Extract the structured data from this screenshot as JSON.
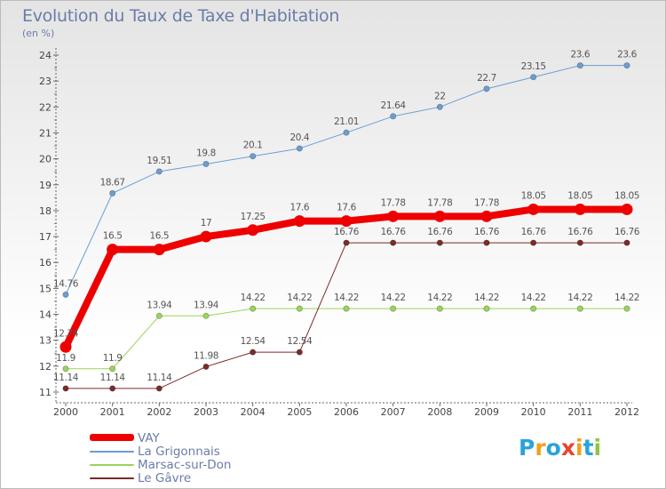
{
  "header": {
    "title": "Evolution du Taux de Taxe d'Habitation",
    "unit": "(en %)"
  },
  "logo": {
    "text": "Proxiti",
    "letters": [
      "P",
      "r",
      "o",
      "x",
      "i",
      "t",
      "i"
    ],
    "colors": [
      "#2aa3d9",
      "#f2a01a",
      "#2aa3d9",
      "#e8452c",
      "#f2a01a",
      "#2aa3d9",
      "#8cc63f"
    ]
  },
  "chart_data": {
    "type": "line",
    "title": "Evolution du Taux de Taxe d'Habitation",
    "ylabel": "(en %)",
    "xlabel": "",
    "ylim": [
      11,
      24
    ],
    "yticks": [
      11,
      12,
      13,
      14,
      15,
      16,
      17,
      18,
      19,
      20,
      21,
      22,
      23,
      24
    ],
    "x": [
      "2000",
      "2001",
      "2002",
      "2003",
      "2004",
      "2005",
      "2006",
      "2007",
      "2008",
      "2009",
      "2010",
      "2011",
      "2012"
    ],
    "grid": false,
    "legend_position": "bottom-left",
    "series": [
      {
        "name": "VAY",
        "color": "#ee0000",
        "values": [
          12.74,
          16.5,
          16.5,
          17,
          17.25,
          17.6,
          17.6,
          17.78,
          17.78,
          17.78,
          18.05,
          18.05,
          18.05
        ],
        "labels": [
          "12.74",
          "16.5",
          "16.5",
          "17",
          "17.25",
          "17.6",
          "17.6",
          "17.78",
          "17.78",
          "17.78",
          "18.05",
          "18.05",
          "18.05"
        ]
      },
      {
        "name": "La Grigonnais",
        "color": "#6b9ed0",
        "values": [
          14.76,
          18.67,
          19.51,
          19.8,
          20.1,
          20.4,
          21.01,
          21.64,
          22,
          22.7,
          23.15,
          23.6,
          23.6
        ],
        "labels": [
          "14.76",
          "18.67",
          "19.51",
          "19.8",
          "20.1",
          "20.4",
          "21.01",
          "21.64",
          "22",
          "22.7",
          "23.15",
          "23.6",
          "23.6"
        ]
      },
      {
        "name": "Marsac-sur-Don",
        "color": "#9ad45a",
        "values": [
          11.9,
          11.9,
          13.94,
          13.94,
          14.22,
          14.22,
          14.22,
          14.22,
          14.22,
          14.22,
          14.22,
          14.22,
          14.22
        ],
        "labels": [
          "11.9",
          "11.9",
          "13.94",
          "13.94",
          "14.22",
          "14.22",
          "14.22",
          "14.22",
          "14.22",
          "14.22",
          "14.22",
          "14.22",
          "14.22"
        ]
      },
      {
        "name": "Le Gâvre",
        "color": "#7b2b2b",
        "values": [
          11.14,
          11.14,
          11.14,
          11.98,
          12.54,
          12.54,
          16.76,
          16.76,
          16.76,
          16.76,
          16.76,
          16.76,
          16.76
        ],
        "labels": [
          "11.14",
          "11.14",
          "11.14",
          "11.98",
          "12.54",
          "12.54",
          "16.76",
          "16.76",
          "16.76",
          "16.76",
          "16.76",
          "16.76",
          "16.76"
        ]
      }
    ]
  }
}
